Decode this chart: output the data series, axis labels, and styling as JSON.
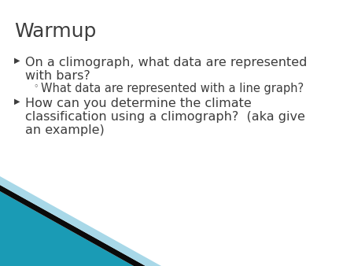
{
  "title": "Warmup",
  "title_color": "#3D3D3D",
  "title_fontsize": 18,
  "background_color": "#FFFFFF",
  "text_color": "#3D3D3D",
  "bullet1_text_line1": "On a climograph, what data are represented",
  "bullet1_text_line2": "with bars?",
  "sub_bullet_text": "What data are represented with a line graph?",
  "bullet2_text_line1": "How can you determine the climate",
  "bullet2_text_line2": "classification using a climograph?  (aka give",
  "bullet2_text_line3": "an example)",
  "bullet_fontsize": 11.5,
  "sub_bullet_fontsize": 10.5,
  "decoration": {
    "teal_color": "#1A9BB5",
    "dark_color": "#0A0A0A",
    "light_color": "#A8D8E8"
  }
}
